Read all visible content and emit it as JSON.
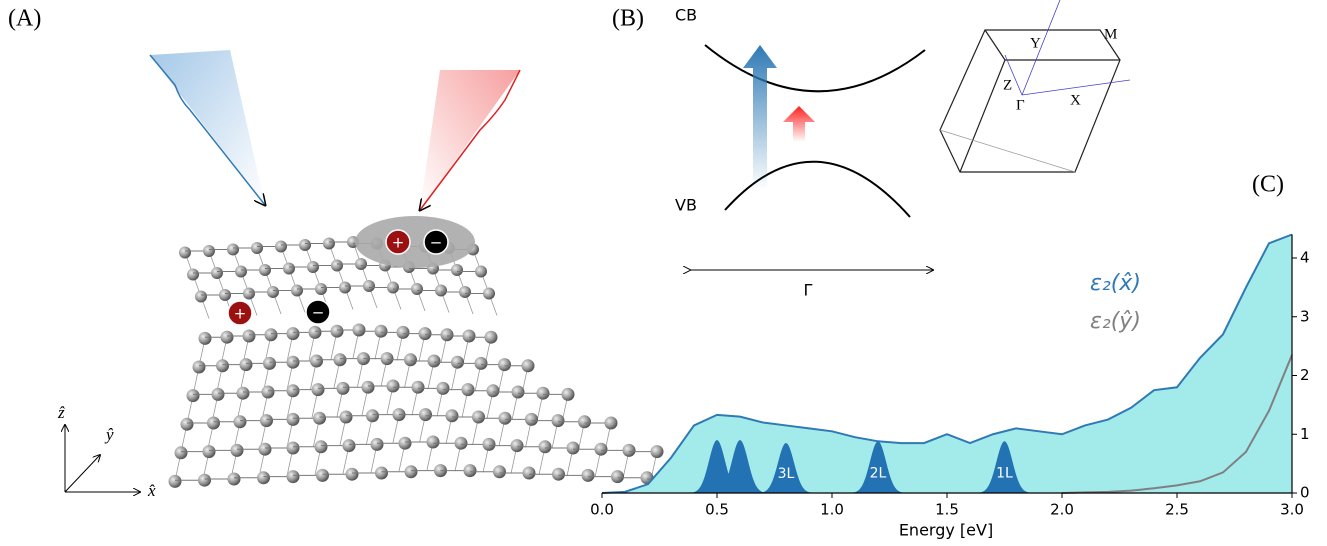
{
  "panel_a": {
    "label": "(A)",
    "axes": [
      "x̂",
      "ŷ",
      "ẑ"
    ],
    "charges": [
      "+",
      "−",
      "+",
      "−"
    ]
  },
  "panel_b": {
    "label": "(B)",
    "cb": "CB",
    "vb": "VB",
    "k_point": "Γ",
    "zone_points": [
      "Y",
      "M",
      "Z",
      "Γ",
      "X"
    ]
  },
  "chart_data": {
    "type": "area",
    "panel_label": "(C)",
    "x_label": "Energy [eV]",
    "x": [
      0.0,
      0.1,
      0.2,
      0.3,
      0.4,
      0.5,
      0.6,
      0.7,
      0.8,
      0.9,
      1.0,
      1.1,
      1.2,
      1.3,
      1.4,
      1.5,
      1.6,
      1.7,
      1.8,
      1.9,
      2.0,
      2.1,
      2.2,
      2.3,
      2.4,
      2.5,
      2.6,
      2.7,
      2.8,
      2.9,
      3.0
    ],
    "series": [
      {
        "name": "ε₂(x̂)",
        "color": "#2f7ab5",
        "fill": "#a3eaea",
        "values": [
          0,
          0.02,
          0.15,
          0.6,
          1.15,
          1.33,
          1.3,
          1.2,
          1.15,
          1.1,
          1.05,
          0.95,
          0.88,
          0.85,
          0.85,
          1.0,
          0.85,
          1.0,
          1.1,
          1.05,
          1.0,
          1.15,
          1.25,
          1.45,
          1.75,
          1.8,
          2.3,
          2.7,
          3.5,
          4.25,
          4.4
        ]
      },
      {
        "name": "ε₂(ŷ)",
        "color": "#808080",
        "values": [
          null,
          null,
          null,
          null,
          null,
          null,
          null,
          null,
          null,
          null,
          null,
          null,
          null,
          null,
          null,
          null,
          null,
          null,
          null,
          null,
          0,
          0.01,
          0.02,
          0.04,
          0.08,
          0.13,
          0.2,
          0.35,
          0.7,
          1.4,
          2.35
        ]
      }
    ],
    "peaks": {
      "color": "#2272b4",
      "centers": [
        0.5,
        0.6,
        0.8,
        1.2,
        1.75
      ],
      "heights": [
        0.9,
        0.9,
        0.85,
        0.88,
        0.88
      ],
      "labels": [
        null,
        null,
        "3L",
        "2L",
        "1L"
      ]
    },
    "xlim": [
      0.0,
      3.0
    ],
    "xticks": [
      {
        "value": 0,
        "label": "0.0"
      },
      0.5,
      {
        "value": 1,
        "label": "1.0"
      },
      1.5,
      {
        "value": 2,
        "label": "2.0"
      },
      2.5,
      {
        "value": 3,
        "label": "3.0"
      }
    ],
    "ylim": [
      0,
      4.4
    ],
    "yticks": [
      0,
      1,
      2,
      3,
      4
    ]
  }
}
